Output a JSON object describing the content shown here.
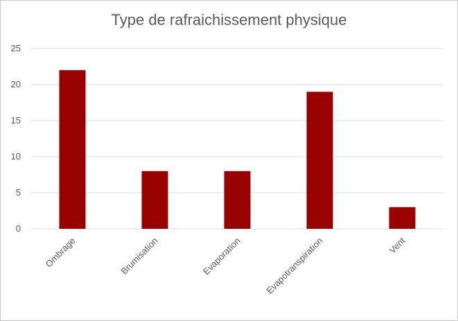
{
  "chart_data": {
    "type": "bar",
    "title": "Type de rafraichissement physique",
    "xlabel": "",
    "ylabel": "",
    "categories": [
      "Ombrage",
      "Brumisation",
      "Evaporation",
      "Evapotranspiration",
      "Vent"
    ],
    "values": [
      22,
      8,
      8,
      19,
      3
    ],
    "ylim": [
      0,
      25
    ],
    "yticks": [
      0,
      5,
      10,
      15,
      20,
      25
    ],
    "grid": true,
    "legend": "none",
    "bar_color": "#990000",
    "grid_color": "#d9d9d9",
    "text_color": "#595959"
  }
}
